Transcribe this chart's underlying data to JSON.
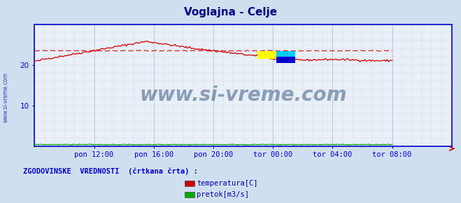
{
  "title": "Voglajna - Celje",
  "title_color": "#000080",
  "bg_color": "#d0dff0",
  "plot_bg_color": "#e8f0f8",
  "xlabel_color": "#0000cc",
  "ylabel_color": "#0000cc",
  "axis_color": "#0000cc",
  "x_tick_labels": [
    "pon 12:00",
    "pon 16:00",
    "pon 20:00",
    "tor 00:00",
    "tor 04:00",
    "tor 08:00"
  ],
  "x_tick_positions": [
    48,
    96,
    144,
    192,
    240,
    288
  ],
  "y_ticks": [
    10,
    20
  ],
  "ylim": [
    0,
    30
  ],
  "xlim": [
    0,
    336
  ],
  "watermark_text": "www.si-vreme.com",
  "watermark_color": "#1a3a6a",
  "watermark_alpha": 0.45,
  "legend_title": "ZGODOVINSKE  VREDNOSTI  (črtkana črta) :",
  "legend_labels": [
    "temperatura[C]",
    "pretok[m3/s]"
  ],
  "legend_colors": [
    "#cc0000",
    "#00aa00"
  ],
  "sidebar_text": "www.si-vreme.com",
  "sidebar_color": "#0000aa",
  "temp_color": "#cc0000",
  "flow_color": "#00aa00",
  "n_points": 289
}
